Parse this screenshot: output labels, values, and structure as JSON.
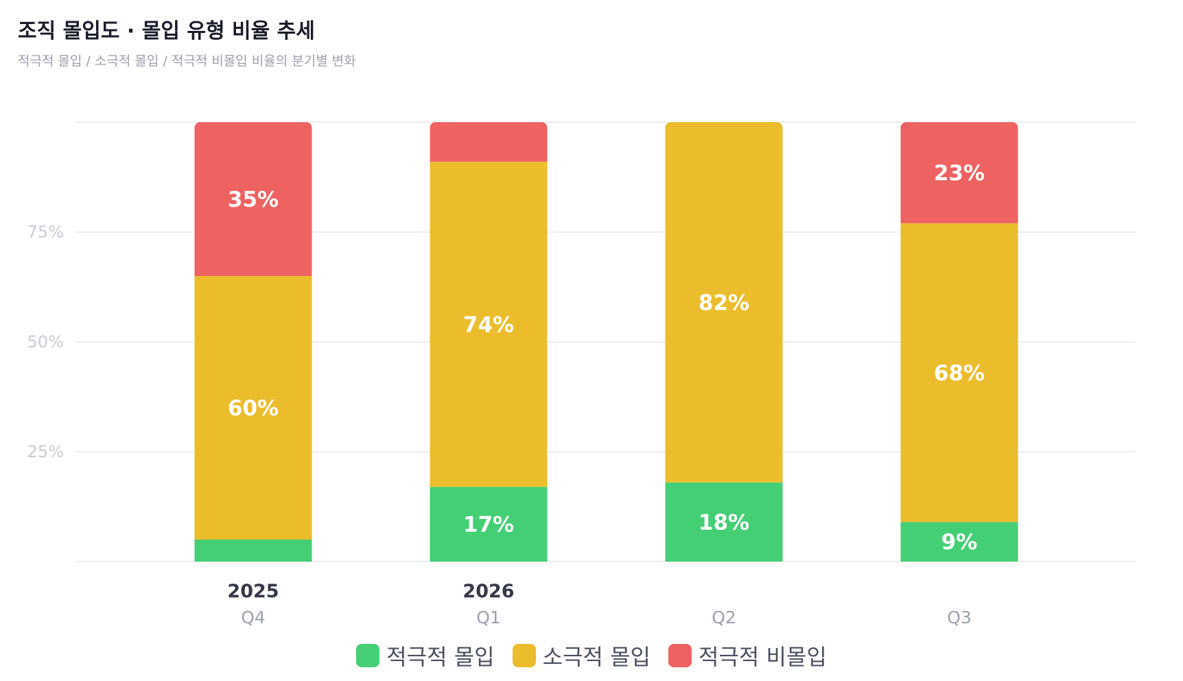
{
  "header": {
    "title": "조직 몰입도 · 몰입 유형 비율 추세",
    "subtitle": "적극적 몰입 / 소극적 몰입 / 적극적 비몰입 비율의 분기별 변화"
  },
  "colors": {
    "active": "#44cf75",
    "passive": "#ebbd2d",
    "disengaged": "#ef6262",
    "grid": "#ebedf0",
    "tick": "#c7ccd4",
    "year": "#353947",
    "quarter": "#9ba1ad"
  },
  "chart_data": {
    "type": "bar",
    "stacked": true,
    "categories": [
      {
        "year": "2025",
        "quarter": "Q4"
      },
      {
        "year": "2026",
        "quarter": "Q1"
      },
      {
        "year": "",
        "quarter": "Q2"
      },
      {
        "year": "",
        "quarter": "Q3"
      }
    ],
    "series": [
      {
        "key": "active",
        "name": "적극적 몰입",
        "values": [
          5,
          17,
          18,
          9
        ],
        "labels": [
          "",
          "17%",
          "18%",
          "9%"
        ]
      },
      {
        "key": "passive",
        "name": "소극적 몰입",
        "values": [
          60,
          74,
          82,
          68
        ],
        "labels": [
          "60%",
          "74%",
          "82%",
          "68%"
        ]
      },
      {
        "key": "disengaged",
        "name": "적극적 비몰입",
        "values": [
          35,
          9,
          0,
          23
        ],
        "labels": [
          "35%",
          "",
          "",
          "23%"
        ]
      }
    ],
    "yticks": [
      "25%",
      "50%",
      "75%"
    ],
    "ytick_values": [
      25,
      50,
      75
    ],
    "ylim": [
      0,
      100
    ],
    "grid": true,
    "legend_position": "bottom"
  }
}
